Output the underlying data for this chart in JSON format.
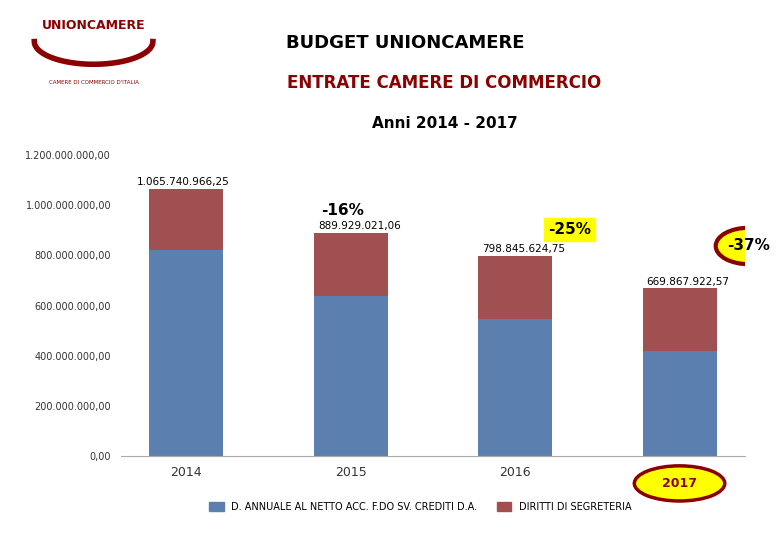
{
  "title_box": "BUDGET UNIONCAMERE",
  "subtitle1": "ENTRATE CAMERE DI COMMERCIO",
  "subtitle2": "Anni 2014 - 2017",
  "years": [
    "2014",
    "2015",
    "2016",
    "2017"
  ],
  "blue_values": [
    820000000,
    640000000,
    548000000,
    420000000
  ],
  "red_values": [
    245740966,
    249929021,
    250845625,
    249867923
  ],
  "totals": [
    1065740966.25,
    889929021.06,
    798845624.75,
    669867922.57
  ],
  "total_labels": [
    "1.065.740.966,25",
    "889.929.021,06",
    "798.845.624,75",
    "669.867.922,57"
  ],
  "blue_color": "#5b7fae",
  "red_color": "#a05050",
  "background_color": "#ffffff",
  "ytick_labels": [
    "0,00",
    "200.000.000,00",
    "400.000.000,00",
    "600.000.000,00",
    "800.000.000,00",
    "1.000.000.000,00",
    "1.200.000.000,00"
  ],
  "ytick_values": [
    0,
    200000000,
    400000000,
    600000000,
    800000000,
    1000000000,
    1200000000
  ],
  "ylim": [
    0,
    1280000000
  ],
  "legend_labels": [
    "D. ANNUALE AL NETTO ACC. F.DO SV. CREDITI D.A.",
    "DIRITTI DI SEGRETERIA"
  ],
  "logo_text": "UNIONCAMERE",
  "logo_subtext": "CAMERE DI COMMERCIO D'ITALIA",
  "title_bg": "#e8e8e8",
  "title_border": "#8B0000",
  "dark_red": "#8B0000",
  "yellow": "#ffff00"
}
